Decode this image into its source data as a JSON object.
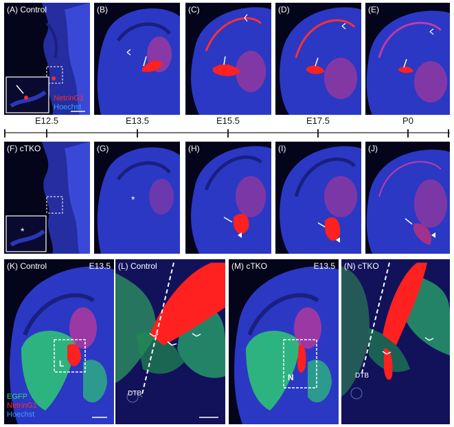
{
  "panels": {
    "A": {
      "label": "(A) Control"
    },
    "B": {
      "label": "(B)"
    },
    "C": {
      "label": "(C)"
    },
    "D": {
      "label": "(D)"
    },
    "E": {
      "label": "(E)"
    },
    "F": {
      "label": "(F) cTKO"
    },
    "G": {
      "label": "(G)"
    },
    "H": {
      "label": "(H)"
    },
    "I": {
      "label": "(I)"
    },
    "J": {
      "label": "(J)"
    },
    "K": {
      "label": "(K)  Control",
      "stage": "E13.5"
    },
    "L": {
      "label": "(L)  Control"
    },
    "M": {
      "label": "(M) cTKO",
      "stage": "E13.5"
    },
    "N": {
      "label": "(N) cTKO"
    }
  },
  "legend_top": {
    "netrin": "NetrinG1",
    "hoechst": "Hoechst"
  },
  "legend_bottom": {
    "egfp": "EGFP",
    "netrin": "NetrinG1",
    "hoechst": "Hoechst"
  },
  "timeline": {
    "stages": [
      "E12.5",
      "E13.5",
      "E15.5",
      "E17.5",
      "P0"
    ]
  },
  "annotations": {
    "asterisk": "*",
    "box_L": "L",
    "box_N": "N",
    "dtb": "DTB"
  },
  "colors": {
    "hoechst": "#2d3bd6",
    "netrin": "#ff1a1a",
    "egfp": "#2fdc6a",
    "background": "#05051a"
  }
}
